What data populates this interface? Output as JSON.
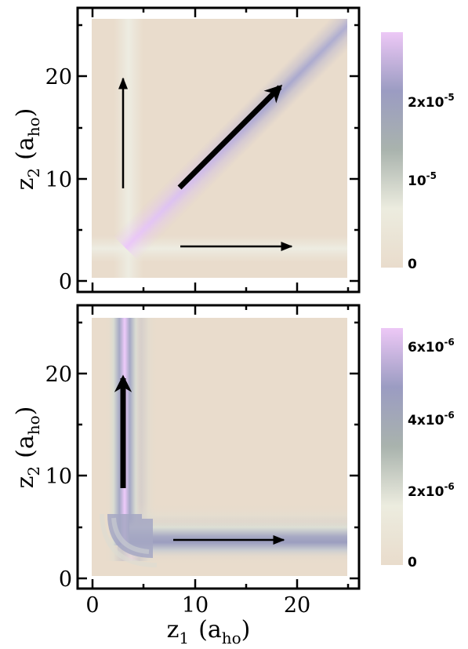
{
  "chart_data": [
    {
      "type": "heatmap",
      "panel": "top",
      "xlabel": "",
      "ylabel_main": "z",
      "ylabel_sub": "2",
      "ylabel_unit_open": "(a",
      "ylabel_unit_sub": "ho",
      "ylabel_unit_close": ")",
      "xlim": [
        0,
        25
      ],
      "ylim": [
        0,
        25
      ],
      "yticks": [
        "0",
        "10",
        "20"
      ],
      "colorbar": {
        "range": [
          0,
          2.5e-05
        ],
        "ticks": [
          {
            "value": 0,
            "base": "0",
            "exp": ""
          },
          {
            "value": 1e-05,
            "base": "10",
            "exp": "-5"
          },
          {
            "value": 2e-05,
            "base": "2x10",
            "exp": "-5"
          }
        ]
      },
      "features": [
        {
          "kind": "diagonal-band",
          "description": "density concentrated along z1 = z2, peak near (3,3)"
        }
      ],
      "arrows": [
        {
          "from": [
            3,
            9
          ],
          "to": [
            3,
            20
          ],
          "weight": "thin"
        },
        {
          "from": [
            9,
            3.5
          ],
          "to": [
            20,
            3.5
          ],
          "weight": "thin"
        },
        {
          "from": [
            9,
            9
          ],
          "to": [
            19,
            19
          ],
          "weight": "thick"
        }
      ]
    },
    {
      "type": "heatmap",
      "panel": "bottom",
      "xlabel_main": "z",
      "xlabel_sub": "1",
      "xlabel_unit_open": "(a",
      "xlabel_unit_sub": "ho",
      "xlabel_unit_close": ")",
      "ylabel_main": "z",
      "ylabel_sub": "2",
      "ylabel_unit_open": "(a",
      "ylabel_unit_sub": "ho",
      "ylabel_unit_close": ")",
      "xlim": [
        0,
        25
      ],
      "ylim": [
        0,
        25
      ],
      "xticks": [
        "0",
        "10",
        "20"
      ],
      "yticks": [
        "0",
        "10",
        "20"
      ],
      "colorbar": {
        "range": [
          0,
          6.5e-06
        ],
        "ticks": [
          {
            "value": 0,
            "base": "0",
            "exp": ""
          },
          {
            "value": 2e-06,
            "base": "2x10",
            "exp": "-6"
          },
          {
            "value": 4e-06,
            "base": "4x10",
            "exp": "-6"
          },
          {
            "value": 6e-06,
            "base": "6x10",
            "exp": "-6"
          }
        ]
      },
      "features": [
        {
          "kind": "L-band",
          "description": "density along z1 ≈ 3 (vertical) and z2 ≈ 3.5 (horizontal)"
        }
      ],
      "arrows": [
        {
          "from": [
            3,
            8.5
          ],
          "to": [
            3,
            20.5
          ],
          "weight": "thick"
        },
        {
          "from": [
            8,
            3.5
          ],
          "to": [
            19,
            3.5
          ],
          "weight": "thin"
        }
      ]
    }
  ],
  "colors": {
    "background_min": "#e9dccc",
    "mid_gray": "#a6a6a6",
    "band_blue": "#9b9cc2",
    "peak_pink": "#e8c8f4"
  }
}
